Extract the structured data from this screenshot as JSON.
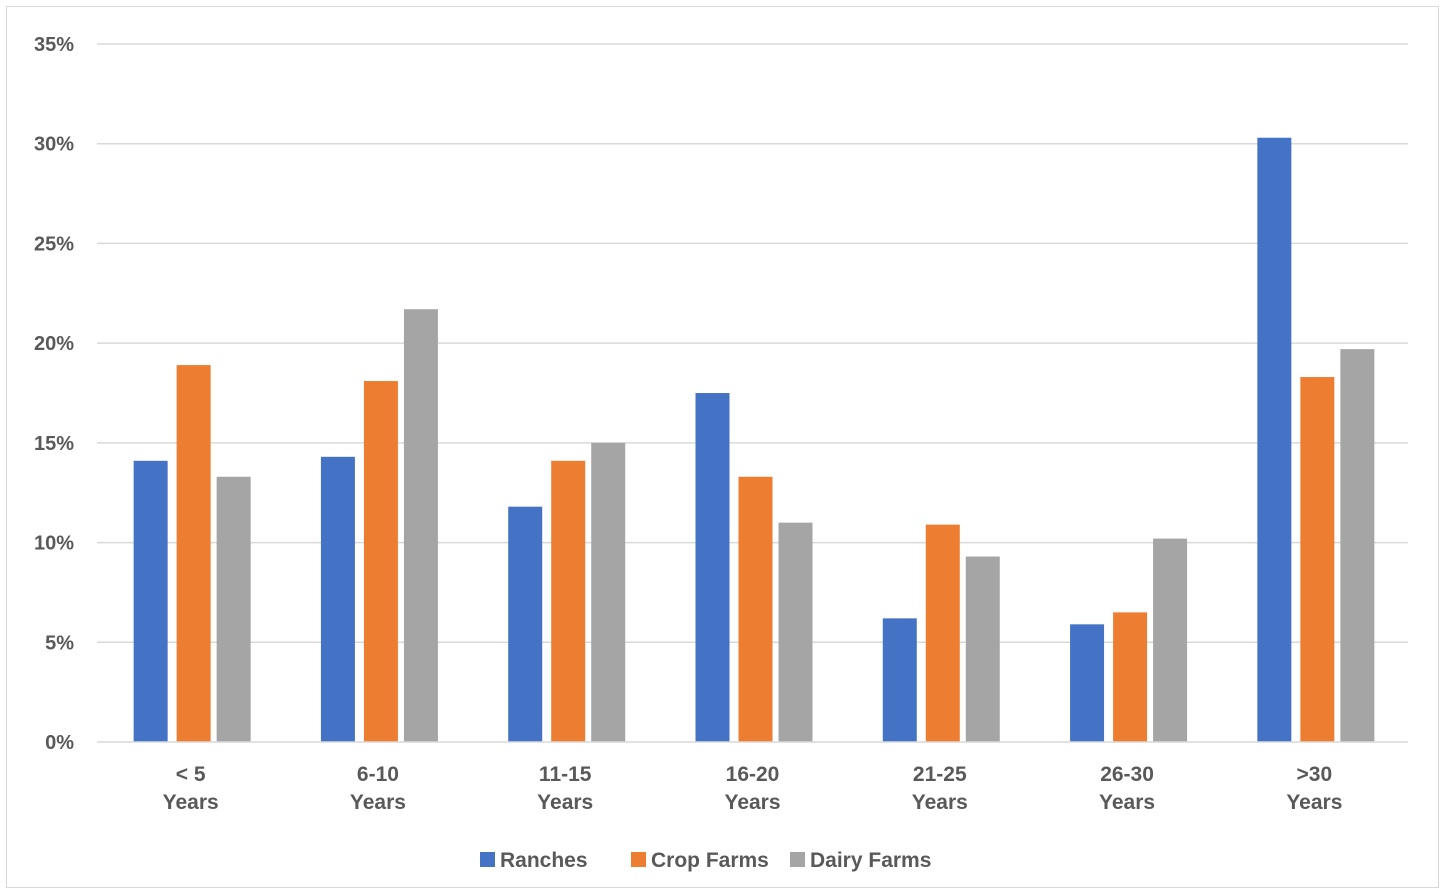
{
  "chart_data": {
    "type": "bar",
    "title": "",
    "xlabel": "",
    "ylabel": "",
    "categories": [
      [
        "< 5",
        "Years"
      ],
      [
        "6-10",
        "Years"
      ],
      [
        "11-15",
        "Years"
      ],
      [
        "16-20",
        "Years"
      ],
      [
        "21-25",
        "Years"
      ],
      [
        "26-30",
        "Years"
      ],
      [
        ">30",
        "Years"
      ]
    ],
    "series": [
      {
        "name": "Ranches",
        "color": "#4472C4",
        "values": [
          14.1,
          14.3,
          11.8,
          17.5,
          6.2,
          5.9,
          30.3
        ]
      },
      {
        "name": "Crop Farms",
        "color": "#ED7D31",
        "values": [
          18.9,
          18.1,
          14.1,
          13.3,
          10.9,
          6.5,
          18.3
        ]
      },
      {
        "name": "Dairy Farms",
        "color": "#A5A5A5",
        "values": [
          13.3,
          21.7,
          15.0,
          11.0,
          9.3,
          10.2,
          19.7
        ]
      }
    ],
    "ylim": [
      0,
      35
    ],
    "yticks": [
      0,
      5,
      10,
      15,
      20,
      25,
      30,
      35
    ],
    "ytick_labels": [
      "0%",
      "5%",
      "10%",
      "15%",
      "20%",
      "25%",
      "30%",
      "35%"
    ],
    "grid": true,
    "legend_position": "bottom"
  }
}
